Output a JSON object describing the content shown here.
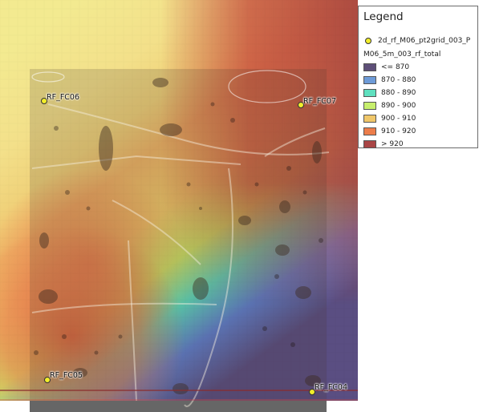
{
  "legend": {
    "title": "Legend",
    "point_layer": {
      "label": "2d_rf_M06_pt2grid_003_P",
      "symbol": "yellow-circle-icon",
      "color": "#f2ee2a"
    },
    "raster_layer": {
      "title": "M06_5m_003_rf_total",
      "classes": [
        {
          "label": "<= 870",
          "color": "#5e4f78"
        },
        {
          "label": "870 - 880",
          "color": "#6e9bd8"
        },
        {
          "label": "880 - 890",
          "color": "#5fe0bf"
        },
        {
          "label": "890 - 900",
          "color": "#c7ef6d"
        },
        {
          "label": "900 - 910",
          "color": "#f0c76a"
        },
        {
          "label": "910 - 920",
          "color": "#ec7d4a"
        },
        {
          "label": "> 920",
          "color": "#a94545"
        }
      ]
    }
  },
  "points": [
    {
      "id": "RF_FC06"
    },
    {
      "id": "RF_FC07"
    },
    {
      "id": "RF_FC05"
    },
    {
      "id": "RF_FC04"
    }
  ]
}
